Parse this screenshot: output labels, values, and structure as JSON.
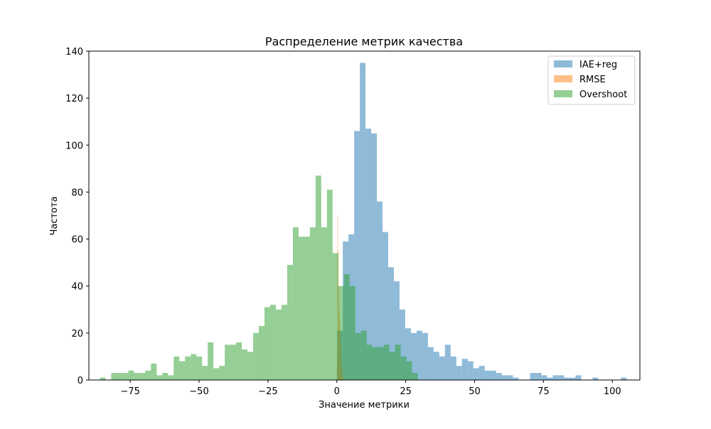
{
  "chart_data": {
    "type": "histogram",
    "title": "Распределение метрик качества",
    "xlabel": "Значение метрики",
    "ylabel": "Частота",
    "xlim": [
      -90,
      110
    ],
    "ylim": [
      0,
      140
    ],
    "xticks": [
      -75,
      -50,
      -25,
      0,
      25,
      50,
      75,
      100
    ],
    "xtick_labels": [
      "−75",
      "−50",
      "−25",
      "0",
      "25",
      "50",
      "75",
      "100"
    ],
    "yticks": [
      0,
      20,
      40,
      60,
      80,
      100,
      120,
      140
    ],
    "grid": false,
    "legend_position": "top-right",
    "series": [
      {
        "name": "IAE+reg",
        "color": "#1f77b4",
        "opacity": 0.5,
        "bin_start": 0.1,
        "bin_width": 2.06,
        "counts": [
          21,
          59,
          62,
          106,
          135,
          107,
          105,
          76,
          63,
          48,
          42,
          30,
          22,
          20,
          21,
          20,
          14,
          12,
          10,
          15,
          10,
          6,
          9,
          8,
          5,
          6,
          4,
          4,
          3,
          2,
          2,
          1,
          0,
          0,
          3,
          3,
          2,
          1,
          2,
          2,
          1,
          1,
          2,
          0,
          0,
          1,
          0,
          0,
          0,
          0,
          1
        ]
      },
      {
        "name": "RMSE",
        "color": "#ff7f0e",
        "opacity": 0.5,
        "bin_start": 0.0,
        "bin_width": 0.2,
        "counts": [
          8,
          70,
          55,
          40,
          30,
          25,
          20,
          14,
          9,
          5,
          3,
          1
        ]
      },
      {
        "name": "Overshoot",
        "color": "#2ca02c",
        "opacity": 0.5,
        "bin_start": -86.0,
        "bin_width": 2.06,
        "counts": [
          1,
          0,
          3,
          3,
          3,
          4,
          3,
          3,
          4,
          7,
          2,
          3,
          2,
          10,
          8,
          10,
          11,
          10,
          6,
          16,
          5,
          6,
          15,
          15,
          16,
          13,
          12,
          20,
          23,
          31,
          32,
          30,
          32,
          49,
          65,
          61,
          61,
          65,
          87,
          65,
          81,
          54,
          40,
          45,
          40,
          20,
          21,
          15,
          14,
          14,
          15,
          12,
          15,
          10,
          8,
          3
        ]
      }
    ]
  }
}
